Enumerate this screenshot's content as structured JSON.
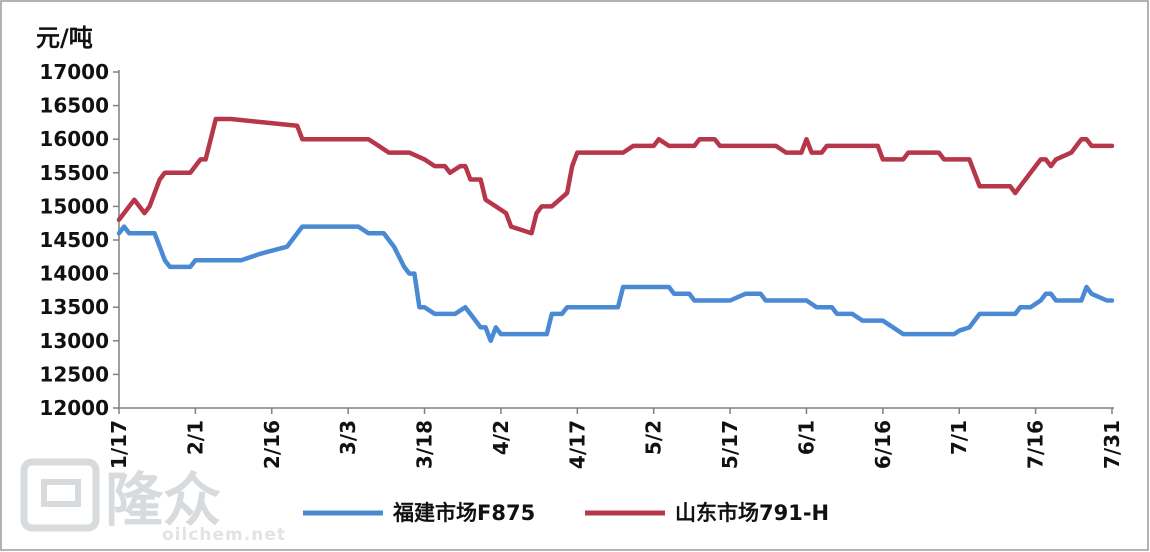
{
  "chart_data": {
    "type": "line",
    "unit_label": "元/吨",
    "ylim": [
      12000,
      17000
    ],
    "y_ticks": [
      "17000",
      "16500",
      "16000",
      "15500",
      "15000",
      "14500",
      "14000",
      "13500",
      "13000",
      "12500",
      "12000"
    ],
    "categories": [
      "1/17",
      "2/1",
      "2/16",
      "3/3",
      "3/18",
      "4/2",
      "4/17",
      "5/2",
      "5/17",
      "6/1",
      "6/16",
      "7/1",
      "7/16",
      "7/31"
    ],
    "grid": false,
    "legend_position": "bottom",
    "series": [
      {
        "name": "福建市场F875",
        "color": "#4a8ad4",
        "points": [
          [
            "1/17",
            14600
          ],
          [
            "1/18",
            14700
          ],
          [
            "1/19",
            14600
          ],
          [
            "1/20",
            14600
          ],
          [
            "1/22",
            14600
          ],
          [
            "1/24",
            14600
          ],
          [
            "1/26",
            14200
          ],
          [
            "1/27",
            14100
          ],
          [
            "1/29",
            14100
          ],
          [
            "1/31",
            14100
          ],
          [
            "2/1",
            14200
          ],
          [
            "2/3",
            14200
          ],
          [
            "2/6",
            14200
          ],
          [
            "2/10",
            14200
          ],
          [
            "2/14",
            14300
          ],
          [
            "2/19",
            14400
          ],
          [
            "2/22",
            14700
          ],
          [
            "2/24",
            14700
          ],
          [
            "3/1",
            14700
          ],
          [
            "3/5",
            14700
          ],
          [
            "3/7",
            14600
          ],
          [
            "3/10",
            14600
          ],
          [
            "3/12",
            14400
          ],
          [
            "3/14",
            14100
          ],
          [
            "3/15",
            14000
          ],
          [
            "3/16",
            14000
          ],
          [
            "3/17",
            13500
          ],
          [
            "3/18",
            13500
          ],
          [
            "3/20",
            13400
          ],
          [
            "3/24",
            13400
          ],
          [
            "3/26",
            13500
          ],
          [
            "3/27",
            13400
          ],
          [
            "3/29",
            13200
          ],
          [
            "3/30",
            13200
          ],
          [
            "3/31",
            13000
          ],
          [
            "4/1",
            13200
          ],
          [
            "4/2",
            13100
          ],
          [
            "4/6",
            13100
          ],
          [
            "4/8",
            13100
          ],
          [
            "4/11",
            13100
          ],
          [
            "4/12",
            13400
          ],
          [
            "4/14",
            13400
          ],
          [
            "4/15",
            13500
          ],
          [
            "4/19",
            13500
          ],
          [
            "4/22",
            13500
          ],
          [
            "4/25",
            13500
          ],
          [
            "4/26",
            13800
          ],
          [
            "5/5",
            13800
          ],
          [
            "5/6",
            13700
          ],
          [
            "5/9",
            13700
          ],
          [
            "5/10",
            13600
          ],
          [
            "5/17",
            13600
          ],
          [
            "5/20",
            13700
          ],
          [
            "5/23",
            13700
          ],
          [
            "5/24",
            13600
          ],
          [
            "6/1",
            13600
          ],
          [
            "6/3",
            13500
          ],
          [
            "6/6",
            13500
          ],
          [
            "6/7",
            13400
          ],
          [
            "6/10",
            13400
          ],
          [
            "6/12",
            13300
          ],
          [
            "6/16",
            13300
          ],
          [
            "6/20",
            13100
          ],
          [
            "6/30",
            13100
          ],
          [
            "7/1",
            13150
          ],
          [
            "7/3",
            13200
          ],
          [
            "7/5",
            13400
          ],
          [
            "7/12",
            13400
          ],
          [
            "7/13",
            13500
          ],
          [
            "7/15",
            13500
          ],
          [
            "7/17",
            13600
          ],
          [
            "7/18",
            13700
          ],
          [
            "7/19",
            13700
          ],
          [
            "7/20",
            13600
          ],
          [
            "7/25",
            13600
          ],
          [
            "7/26",
            13800
          ],
          [
            "7/27",
            13700
          ],
          [
            "7/30",
            13600
          ],
          [
            "7/31",
            13600
          ]
        ]
      },
      {
        "name": "山东市场791-H",
        "color": "#b7374a",
        "points": [
          [
            "1/17",
            14800
          ],
          [
            "1/18",
            14900
          ],
          [
            "1/19",
            15000
          ],
          [
            "1/20",
            15100
          ],
          [
            "1/21",
            15000
          ],
          [
            "1/22",
            14900
          ],
          [
            "1/23",
            15000
          ],
          [
            "1/24",
            15200
          ],
          [
            "1/25",
            15400
          ],
          [
            "1/26",
            15500
          ],
          [
            "1/28",
            15500
          ],
          [
            "1/31",
            15500
          ],
          [
            "2/2",
            15700
          ],
          [
            "2/3",
            15700
          ],
          [
            "2/5",
            16300
          ],
          [
            "2/8",
            16300
          ],
          [
            "2/21",
            16200
          ],
          [
            "2/22",
            16000
          ],
          [
            "3/7",
            16000
          ],
          [
            "3/9",
            15900
          ],
          [
            "3/11",
            15800
          ],
          [
            "3/15",
            15800
          ],
          [
            "3/18",
            15700
          ],
          [
            "3/20",
            15600
          ],
          [
            "3/22",
            15600
          ],
          [
            "3/23",
            15500
          ],
          [
            "3/25",
            15600
          ],
          [
            "3/26",
            15600
          ],
          [
            "3/27",
            15400
          ],
          [
            "3/29",
            15400
          ],
          [
            "3/30",
            15100
          ],
          [
            "4/1",
            15000
          ],
          [
            "4/3",
            14900
          ],
          [
            "4/4",
            14700
          ],
          [
            "4/6",
            14650
          ],
          [
            "4/8",
            14600
          ],
          [
            "4/9",
            14900
          ],
          [
            "4/10",
            15000
          ],
          [
            "4/12",
            15000
          ],
          [
            "4/15",
            15200
          ],
          [
            "4/16",
            15600
          ],
          [
            "4/17",
            15800
          ],
          [
            "4/19",
            15800
          ],
          [
            "4/26",
            15800
          ],
          [
            "4/28",
            15900
          ],
          [
            "5/2",
            15900
          ],
          [
            "5/3",
            16000
          ],
          [
            "5/5",
            15900
          ],
          [
            "5/10",
            15900
          ],
          [
            "5/11",
            16000
          ],
          [
            "5/14",
            16000
          ],
          [
            "5/15",
            15900
          ],
          [
            "5/20",
            15900
          ],
          [
            "5/26",
            15900
          ],
          [
            "5/28",
            15800
          ],
          [
            "5/31",
            15800
          ],
          [
            "6/1",
            16000
          ],
          [
            "6/2",
            15800
          ],
          [
            "6/4",
            15800
          ],
          [
            "6/5",
            15900
          ],
          [
            "6/12",
            15900
          ],
          [
            "6/15",
            15900
          ],
          [
            "6/16",
            15700
          ],
          [
            "6/20",
            15700
          ],
          [
            "6/21",
            15800
          ],
          [
            "6/27",
            15800
          ],
          [
            "6/28",
            15700
          ],
          [
            "7/3",
            15700
          ],
          [
            "7/5",
            15300
          ],
          [
            "7/10",
            15300
          ],
          [
            "7/11",
            15300
          ],
          [
            "7/12",
            15200
          ],
          [
            "7/13",
            15300
          ],
          [
            "7/15",
            15500
          ],
          [
            "7/16",
            15600
          ],
          [
            "7/17",
            15700
          ],
          [
            "7/18",
            15700
          ],
          [
            "7/19",
            15600
          ],
          [
            "7/20",
            15700
          ],
          [
            "7/23",
            15800
          ],
          [
            "7/24",
            15900
          ],
          [
            "7/25",
            16000
          ],
          [
            "7/26",
            16000
          ],
          [
            "7/27",
            15900
          ],
          [
            "7/31",
            15900
          ]
        ]
      }
    ]
  },
  "watermark": {
    "logo_chars": "隆众",
    "site": "oilchem.net"
  }
}
